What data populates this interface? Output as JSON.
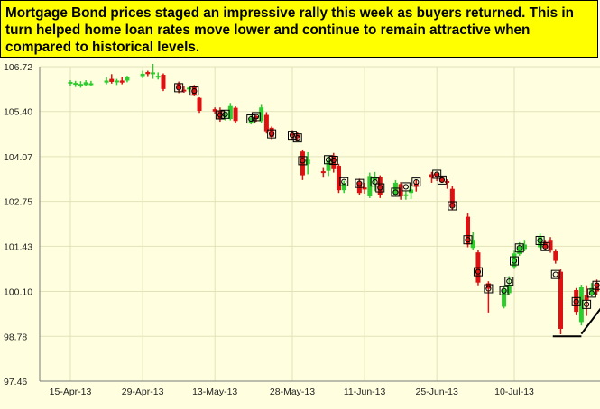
{
  "caption": "Mortgage Bond prices staged an impressive rally this week as buyers returned. This in turn helped home loan rates move lower and continue to remain attractive when compared to historical levels.",
  "colors": {
    "background": "#ffffe0",
    "caption_bg": "#ffff00",
    "up": "#2ecc2e",
    "down": "#dd1111",
    "grid": "#e2e2b8"
  },
  "chart_data": {
    "type": "candlestick",
    "title": "",
    "xlabel": "",
    "ylabel": "",
    "ylim": [
      97.46,
      106.72
    ],
    "y_ticks": [
      "106.72",
      "105.40",
      "104.07",
      "102.75",
      "101.43",
      "100.10",
      "98.78",
      "97.46"
    ],
    "x_ticks": [
      "15-Apr-13",
      "29-Apr-13",
      "13-May-13",
      "28-May-13",
      "11-Jun-13",
      "25-Jun-13",
      "10-Jul-13"
    ],
    "grid": true,
    "candles": [
      {
        "date": "15-Apr-13",
        "open": 106.25,
        "high": 106.32,
        "low": 106.16,
        "close": 106.27
      },
      {
        "date": "16-Apr-13",
        "open": 106.22,
        "high": 106.3,
        "low": 106.12,
        "close": 106.24
      },
      {
        "date": "17-Apr-13",
        "open": 106.19,
        "high": 106.29,
        "low": 106.1,
        "close": 106.21
      },
      {
        "date": "18-Apr-13",
        "open": 106.18,
        "high": 106.32,
        "low": 106.14,
        "close": 106.26
      },
      {
        "date": "19-Apr-13",
        "open": 106.21,
        "high": 106.3,
        "low": 106.14,
        "close": 106.23
      },
      {
        "date": "22-Apr-13",
        "open": 106.25,
        "high": 106.4,
        "low": 106.2,
        "close": 106.31
      },
      {
        "date": "23-Apr-13",
        "open": 106.36,
        "high": 106.5,
        "low": 106.22,
        "close": 106.27
      },
      {
        "date": "24-Apr-13",
        "open": 106.27,
        "high": 106.36,
        "low": 106.18,
        "close": 106.31
      },
      {
        "date": "25-Apr-13",
        "open": 106.31,
        "high": 106.42,
        "low": 106.2,
        "close": 106.25
      },
      {
        "date": "26-Apr-13",
        "open": 106.31,
        "high": 106.45,
        "low": 106.26,
        "close": 106.43
      },
      {
        "date": "29-Apr-13",
        "open": 106.44,
        "high": 106.6,
        "low": 106.38,
        "close": 106.51
      },
      {
        "date": "30-Apr-13",
        "open": 106.56,
        "high": 106.6,
        "low": 106.44,
        "close": 106.5
      },
      {
        "date": "1-May-13",
        "open": 106.5,
        "high": 106.8,
        "low": 106.36,
        "close": 106.55
      },
      {
        "date": "2-May-13",
        "open": 106.42,
        "high": 106.55,
        "low": 106.34,
        "close": 106.45
      },
      {
        "date": "3-May-13",
        "open": 106.48,
        "high": 106.52,
        "low": 106.0,
        "close": 106.06
      },
      {
        "date": "6-May-13",
        "open": 106.23,
        "high": 106.28,
        "low": 105.94,
        "close": 106.05
      },
      {
        "date": "7-May-13",
        "open": 106.04,
        "high": 106.16,
        "low": 105.95,
        "close": 106.03
      },
      {
        "date": "8-May-13",
        "open": 106.05,
        "high": 106.12,
        "low": 105.98,
        "close": 106.1
      },
      {
        "date": "9-May-13",
        "open": 106.15,
        "high": 106.18,
        "low": 105.85,
        "close": 105.88
      },
      {
        "date": "10-May-13",
        "open": 105.8,
        "high": 105.82,
        "low": 105.36,
        "close": 105.42
      },
      {
        "date": "13-May-13",
        "open": 105.47,
        "high": 105.52,
        "low": 105.32,
        "close": 105.4
      },
      {
        "date": "14-May-13",
        "open": 105.43,
        "high": 105.52,
        "low": 105.1,
        "close": 105.17
      },
      {
        "date": "15-May-13",
        "open": 105.24,
        "high": 105.4,
        "low": 105.14,
        "close": 105.29
      },
      {
        "date": "16-May-13",
        "open": 105.18,
        "high": 105.65,
        "low": 105.14,
        "close": 105.56
      },
      {
        "date": "17-May-13",
        "open": 105.51,
        "high": 105.55,
        "low": 105.06,
        "close": 105.12
      },
      {
        "date": "20-May-13",
        "open": 105.07,
        "high": 105.28,
        "low": 105.02,
        "close": 105.21
      },
      {
        "date": "21-May-13",
        "open": 105.26,
        "high": 105.32,
        "low": 105.1,
        "close": 105.18
      },
      {
        "date": "22-May-13",
        "open": 105.12,
        "high": 105.62,
        "low": 105.05,
        "close": 105.52
      },
      {
        "date": "23-May-13",
        "open": 105.3,
        "high": 105.38,
        "low": 104.75,
        "close": 104.82
      },
      {
        "date": "24-May-13",
        "open": 104.92,
        "high": 104.96,
        "low": 104.58,
        "close": 104.65
      },
      {
        "date": "28-May-13",
        "open": 104.76,
        "high": 104.85,
        "low": 104.57,
        "close": 104.7
      },
      {
        "date": "29-May-13",
        "open": 104.72,
        "high": 104.8,
        "low": 104.55,
        "close": 104.62
      },
      {
        "date": "30-May-13",
        "open": 104.22,
        "high": 104.28,
        "low": 103.38,
        "close": 103.52
      },
      {
        "date": "31-May-13",
        "open": 103.85,
        "high": 104.2,
        "low": 103.55,
        "close": 103.98
      },
      {
        "date": "3-Jun-13",
        "open": 103.64,
        "high": 103.76,
        "low": 103.45,
        "close": 103.6
      },
      {
        "date": "4-Jun-13",
        "open": 103.65,
        "high": 104.08,
        "low": 103.5,
        "close": 103.94
      },
      {
        "date": "5-Jun-13",
        "open": 104.1,
        "high": 104.18,
        "low": 103.6,
        "close": 103.7
      },
      {
        "date": "6-Jun-13",
        "open": 103.8,
        "high": 103.86,
        "low": 103.0,
        "close": 103.08
      },
      {
        "date": "7-Jun-13",
        "open": 103.08,
        "high": 103.36,
        "low": 103.0,
        "close": 103.27
      },
      {
        "date": "10-Jun-13",
        "open": 103.32,
        "high": 103.42,
        "low": 102.95,
        "close": 103.0
      },
      {
        "date": "11-Jun-13",
        "open": 103.16,
        "high": 103.3,
        "low": 102.98,
        "close": 103.1
      },
      {
        "date": "12-Jun-13",
        "open": 102.9,
        "high": 103.6,
        "low": 102.85,
        "close": 103.5
      },
      {
        "date": "13-Jun-13",
        "open": 103.38,
        "high": 103.62,
        "low": 103.05,
        "close": 103.47
      },
      {
        "date": "14-Jun-13",
        "open": 103.48,
        "high": 103.52,
        "low": 102.85,
        "close": 102.93
      },
      {
        "date": "17-Jun-13",
        "open": 102.96,
        "high": 103.38,
        "low": 102.9,
        "close": 103.3
      },
      {
        "date": "18-Jun-13",
        "open": 103.26,
        "high": 103.32,
        "low": 102.8,
        "close": 102.9
      },
      {
        "date": "19-Jun-13",
        "open": 102.92,
        "high": 103.05,
        "low": 102.8,
        "close": 102.96
      },
      {
        "date": "20-Jun-13",
        "open": 103.0,
        "high": 103.18,
        "low": 102.82,
        "close": 103.1
      },
      {
        "date": "21-Jun-13",
        "open": 103.28,
        "high": 103.4,
        "low": 103.04,
        "close": 103.18
      },
      {
        "date": "24-Jun-13",
        "open": 103.55,
        "high": 103.62,
        "low": 103.3,
        "close": 103.45
      },
      {
        "date": "25-Jun-13",
        "open": 103.58,
        "high": 103.62,
        "low": 103.35,
        "close": 103.49
      },
      {
        "date": "26-Jun-13",
        "open": 103.45,
        "high": 103.5,
        "low": 103.3,
        "close": 103.32
      },
      {
        "date": "27-Jun-13",
        "open": 103.35,
        "high": 103.4,
        "low": 103.12,
        "close": 103.3
      },
      {
        "date": "28-Jun-13",
        "open": 103.12,
        "high": 103.2,
        "low": 102.5,
        "close": 102.58
      },
      {
        "date": "1-Jul-13",
        "open": 102.3,
        "high": 102.42,
        "low": 101.4,
        "close": 101.48
      },
      {
        "date": "2-Jul-13",
        "open": 101.38,
        "high": 101.85,
        "low": 101.32,
        "close": 101.62
      },
      {
        "date": "3-Jul-13",
        "open": 101.25,
        "high": 101.32,
        "low": 100.28,
        "close": 100.36
      },
      {
        "date": "5-Jul-13",
        "open": 100.34,
        "high": 100.4,
        "low": 99.48,
        "close": 100.18
      },
      {
        "date": "8-Jul-13",
        "open": 99.65,
        "high": 100.28,
        "low": 99.6,
        "close": 100.15
      },
      {
        "date": "9-Jul-13",
        "open": 100.05,
        "high": 100.55,
        "low": 100.0,
        "close": 100.3
      },
      {
        "date": "10-Jul-13",
        "open": 100.82,
        "high": 101.3,
        "low": 100.76,
        "close": 101.22
      },
      {
        "date": "11-Jul-13",
        "open": 101.2,
        "high": 101.55,
        "low": 101.15,
        "close": 101.42
      },
      {
        "date": "12-Jul-13",
        "open": 101.35,
        "high": 101.62,
        "low": 101.28,
        "close": 101.48
      },
      {
        "date": "15-Jul-13",
        "open": 101.4,
        "high": 101.8,
        "low": 101.35,
        "close": 101.7
      },
      {
        "date": "16-Jul-13",
        "open": 101.55,
        "high": 101.62,
        "low": 101.3,
        "close": 101.38
      },
      {
        "date": "17-Jul-13",
        "open": 101.62,
        "high": 101.7,
        "low": 101.24,
        "close": 101.3
      },
      {
        "date": "18-Jul-13",
        "open": 101.28,
        "high": 101.35,
        "low": 100.92,
        "close": 101.0
      },
      {
        "date": "19-Jul-13",
        "open": 100.68,
        "high": 100.75,
        "low": 98.84,
        "close": 99.0
      },
      {
        "date": "22-Jul-13",
        "open": 100.14,
        "high": 100.2,
        "low": 99.4,
        "close": 99.5
      },
      {
        "date": "23-Jul-13",
        "open": 99.2,
        "high": 100.3,
        "low": 99.1,
        "close": 100.22
      },
      {
        "date": "24-Jul-13",
        "open": 99.98,
        "high": 100.28,
        "low": 99.38,
        "close": 99.85
      },
      {
        "date": "25-Jul-13",
        "open": 100.0,
        "high": 100.35,
        "low": 99.95,
        "close": 100.2
      },
      {
        "date": "26-Jul-13",
        "open": 100.35,
        "high": 100.45,
        "low": 100.0,
        "close": 100.1
      },
      {
        "date": "29-Jul-13",
        "open": 100.28,
        "high": 100.48,
        "low": 100.05,
        "close": 100.14
      }
    ],
    "markers": [
      {
        "date": "6-May-13",
        "value": 106.1
      },
      {
        "date": "9-May-13",
        "value": 106.0
      },
      {
        "date": "14-May-13",
        "value": 105.3
      },
      {
        "date": "15-May-13",
        "value": 105.32
      },
      {
        "date": "20-May-13",
        "value": 105.18
      },
      {
        "date": "21-May-13",
        "value": 105.25
      },
      {
        "date": "24-May-13",
        "value": 104.74
      },
      {
        "date": "28-May-13",
        "value": 104.7
      },
      {
        "date": "29-May-13",
        "value": 104.62
      },
      {
        "date": "30-May-13",
        "value": 103.95
      },
      {
        "date": "4-Jun-13",
        "value": 103.98
      },
      {
        "date": "5-Jun-13",
        "value": 103.96
      },
      {
        "date": "7-Jun-13",
        "value": 103.33
      },
      {
        "date": "10-Jun-13",
        "value": 103.28
      },
      {
        "date": "13-Jun-13",
        "value": 103.32
      },
      {
        "date": "14-Jun-13",
        "value": 103.15
      },
      {
        "date": "17-Jun-13",
        "value": 103.02
      },
      {
        "date": "19-Jun-13",
        "value": 103.18
      },
      {
        "date": "21-Jun-13",
        "value": 103.32
      },
      {
        "date": "25-Jun-13",
        "value": 103.55
      },
      {
        "date": "26-Jun-13",
        "value": 103.38
      },
      {
        "date": "28-Jun-13",
        "value": 102.62
      },
      {
        "date": "1-Jul-13",
        "value": 101.62
      },
      {
        "date": "3-Jul-13",
        "value": 100.68
      },
      {
        "date": "5-Jul-13",
        "value": 100.18
      },
      {
        "date": "8-Jul-13",
        "value": 100.12
      },
      {
        "date": "9-Jul-13",
        "value": 100.4
      },
      {
        "date": "10-Jul-13",
        "value": 101.0
      },
      {
        "date": "11-Jul-13",
        "value": 101.38
      },
      {
        "date": "15-Jul-13",
        "value": 101.6
      },
      {
        "date": "16-Jul-13",
        "value": 101.42
      },
      {
        "date": "18-Jul-13",
        "value": 100.6
      },
      {
        "date": "22-Jul-13",
        "value": 99.8
      },
      {
        "date": "24-Jul-13",
        "value": 99.72
      },
      {
        "date": "25-Jul-13",
        "value": 100.05
      },
      {
        "date": "26-Jul-13",
        "value": 100.28
      },
      {
        "date": "29-Jul-13",
        "value": 100.22
      }
    ],
    "annotations": [
      {
        "type": "support-line",
        "from": "18-Jul-13",
        "to": "23-Jul-13",
        "value": 98.78
      },
      {
        "type": "arrow",
        "from": {
          "date": "23-Jul-13",
          "value": 98.85
        },
        "to": {
          "date": "1-Aug-13",
          "value": 100.65
        }
      }
    ]
  }
}
